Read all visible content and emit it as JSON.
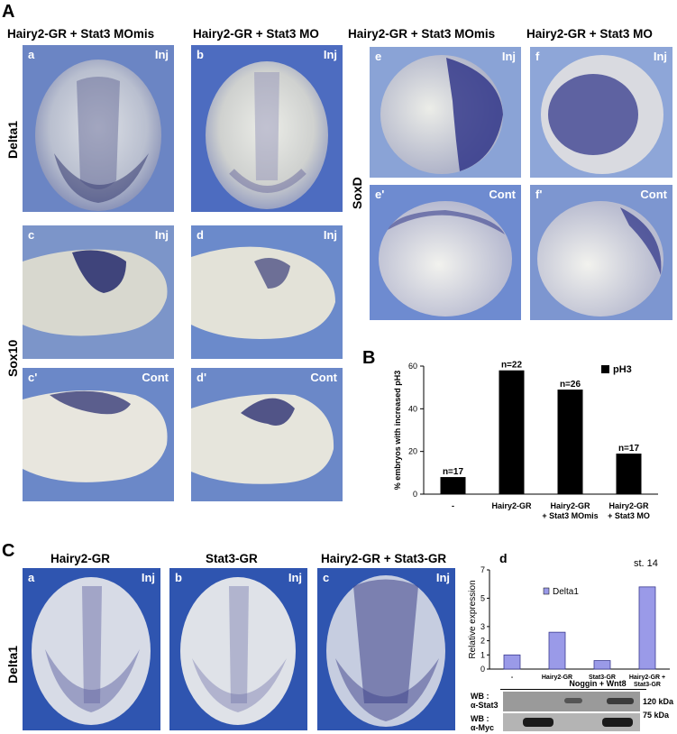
{
  "panel_letters": {
    "A": "A",
    "B": "B",
    "C": "C"
  },
  "sectionA": {
    "headers": [
      "Hairy2-GR + Stat3 MOmis",
      "Hairy2-GR + Stat3 MO",
      "Hairy2-GR + Stat3 MOmis",
      "Hairy2-GR + Stat3 MO"
    ],
    "row_labels": {
      "delta": "Delta1",
      "sox10": "Sox10",
      "soxd": "SoxD"
    },
    "panels": [
      {
        "letter": "a",
        "tag": "Inj"
      },
      {
        "letter": "b",
        "tag": "Inj"
      },
      {
        "letter": "c",
        "tag": "Inj"
      },
      {
        "letter": "d",
        "tag": "Inj"
      },
      {
        "letter": "c'",
        "tag": "Cont"
      },
      {
        "letter": "d'",
        "tag": "Cont"
      },
      {
        "letter": "e",
        "tag": "Inj"
      },
      {
        "letter": "f",
        "tag": "Inj"
      },
      {
        "letter": "e'",
        "tag": "Cont"
      },
      {
        "letter": "f'",
        "tag": "Cont"
      }
    ]
  },
  "chart_data": [
    {
      "type": "bar",
      "ylabel": "% embryos with increased pH3",
      "legend": "pH3",
      "ylim": [
        0,
        60
      ],
      "yticks": [
        0,
        20,
        40,
        60
      ],
      "categories": [
        "-",
        "Hairy2-GR",
        "Hairy2-GR\n+ Stat3 MOmis",
        "Hairy2-GR\n+ Stat3 MO"
      ],
      "values": [
        8,
        58,
        49,
        19
      ],
      "n_labels": [
        "n=17",
        "n=22",
        "n=26",
        "n=17"
      ]
    },
    {
      "type": "bar",
      "ylabel": "Relative expression",
      "legend": "Delta1",
      "title": "st. 14",
      "ylim": [
        0,
        7
      ],
      "yticks": [
        0,
        1,
        2,
        3,
        5,
        7
      ],
      "categories": [
        "-",
        "Hairy2-GR",
        "Stat3-GR",
        "Hairy2-GR +\nStat3-GR"
      ],
      "values": [
        1.0,
        2.6,
        0.6,
        5.8
      ]
    }
  ],
  "sectionC": {
    "headers": [
      "Hairy2-GR",
      "Stat3-GR",
      "Hairy2-GR + Stat3-GR"
    ],
    "row_label": "Delta1",
    "panels": [
      {
        "letter": "a",
        "tag": "Inj"
      },
      {
        "letter": "b",
        "tag": "Inj"
      },
      {
        "letter": "c",
        "tag": "Inj"
      }
    ],
    "d_letter": "d",
    "noggin": "Noggin + Wnt8",
    "wb1": "WB :\nα-Stat3",
    "wb2": "WB :\nα-Myc",
    "kda1": "120 kDa",
    "kda2": "75 kDa"
  }
}
